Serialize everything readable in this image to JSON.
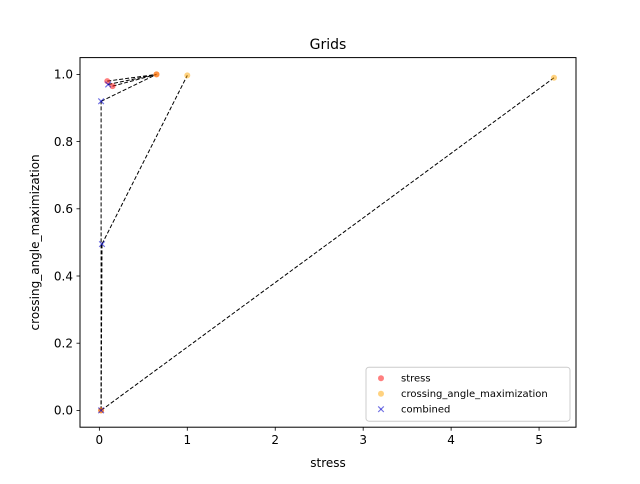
{
  "chart_data": {
    "type": "scatter",
    "title": "Grids",
    "xlabel": "stress",
    "ylabel": "crossing_angle_maximization",
    "xlim": [
      -0.22,
      5.42
    ],
    "ylim": [
      -0.05,
      1.05
    ],
    "xticks": [
      0,
      1,
      2,
      3,
      4,
      5
    ],
    "yticks": [
      0.0,
      0.2,
      0.4,
      0.6,
      0.8,
      1.0
    ],
    "xtick_labels": [
      "0",
      "1",
      "2",
      "3",
      "4",
      "5"
    ],
    "ytick_labels": [
      "0.0",
      "0.2",
      "0.4",
      "0.6",
      "0.8",
      "1.0"
    ],
    "grid": false,
    "legend_position": "lower-right",
    "series": [
      {
        "name": "stress",
        "marker": "circle",
        "color": "#ff0000",
        "points": [
          [
            0.02,
            0.0
          ],
          [
            0.09,
            0.98
          ],
          [
            0.15,
            0.965
          ],
          [
            0.65,
            1.0
          ]
        ]
      },
      {
        "name": "crossing_angle_maximization",
        "marker": "circle",
        "color": "#ffa500",
        "points": [
          [
            0.65,
            1.0
          ],
          [
            1.0,
            0.997
          ],
          [
            5.17,
            0.99
          ],
          [
            0.02,
            0.0
          ]
        ]
      },
      {
        "name": "combined",
        "marker": "x",
        "color": "#0000cd",
        "points": [
          [
            0.1,
            0.97
          ],
          [
            0.02,
            0.92
          ],
          [
            0.03,
            0.495
          ],
          [
            0.02,
            0.0
          ]
        ]
      }
    ],
    "connector_lines": [
      [
        [
          0.09,
          0.98
        ],
        [
          0.65,
          1.0
        ]
      ],
      [
        [
          0.15,
          0.965
        ],
        [
          0.65,
          1.0
        ]
      ],
      [
        [
          0.1,
          0.97
        ],
        [
          0.65,
          1.0
        ]
      ],
      [
        [
          0.02,
          0.92
        ],
        [
          0.65,
          1.0
        ]
      ],
      [
        [
          0.03,
          0.495
        ],
        [
          1.0,
          0.997
        ]
      ],
      [
        [
          0.02,
          0.0
        ],
        [
          5.17,
          0.99
        ]
      ],
      [
        [
          0.02,
          0.0
        ],
        [
          0.02,
          0.92
        ]
      ],
      [
        [
          0.02,
          0.0
        ],
        [
          0.03,
          0.495
        ]
      ]
    ]
  }
}
